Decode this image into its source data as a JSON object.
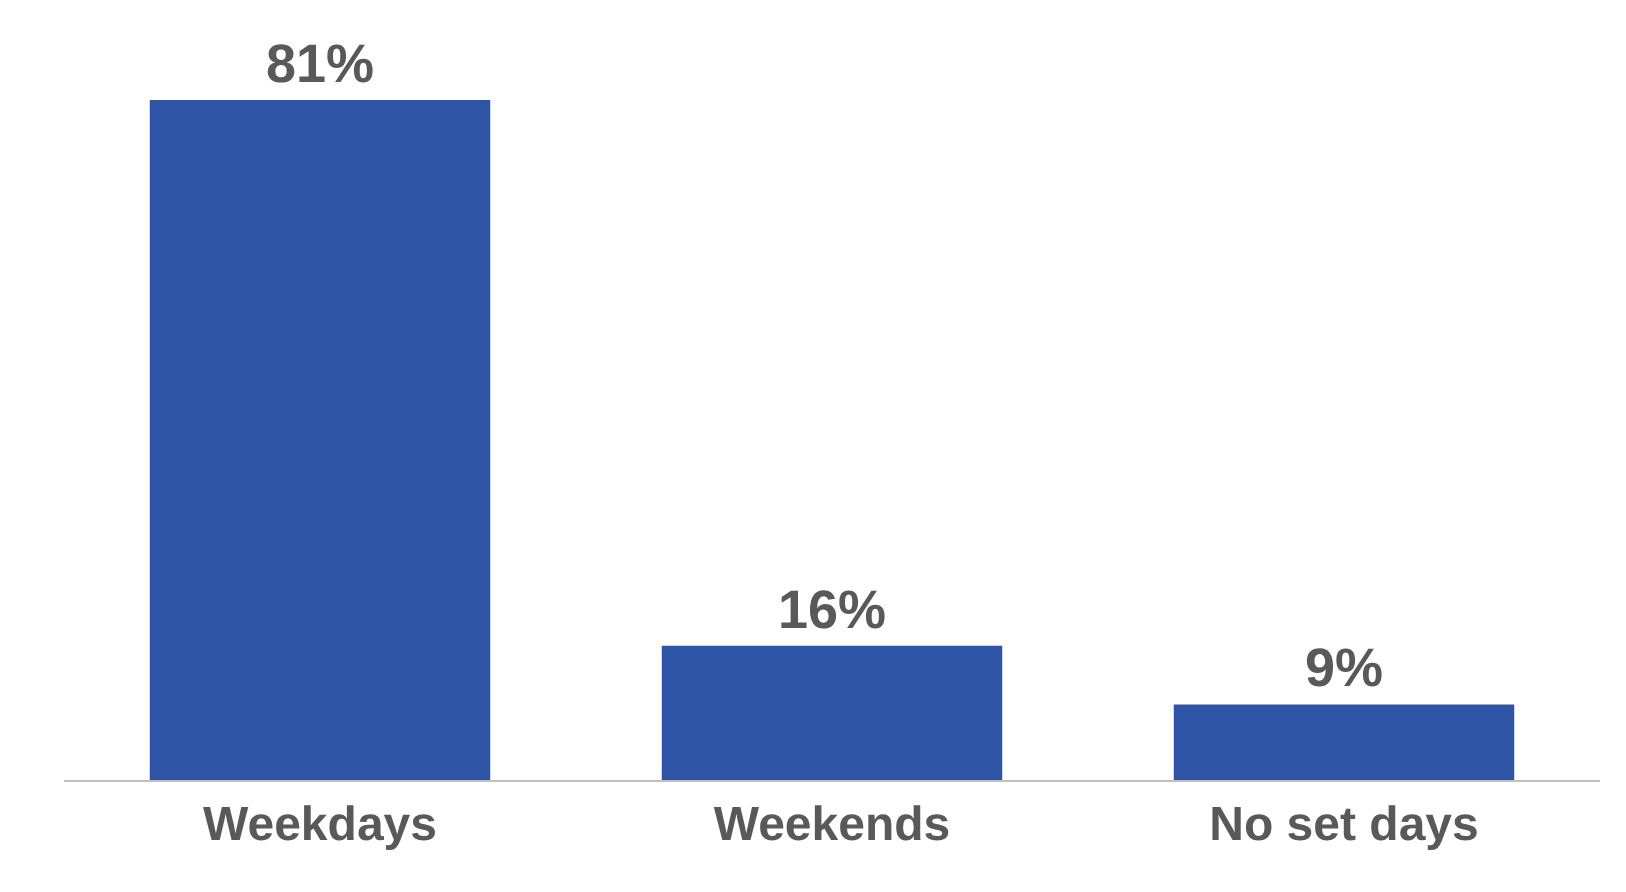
{
  "chart_data": {
    "type": "bar",
    "categories": [
      "Weekdays",
      "Weekends",
      "No set days"
    ],
    "values": [
      81,
      16,
      9
    ],
    "value_labels": [
      "81%",
      "16%",
      "9%"
    ],
    "color": "#2e54a6"
  }
}
